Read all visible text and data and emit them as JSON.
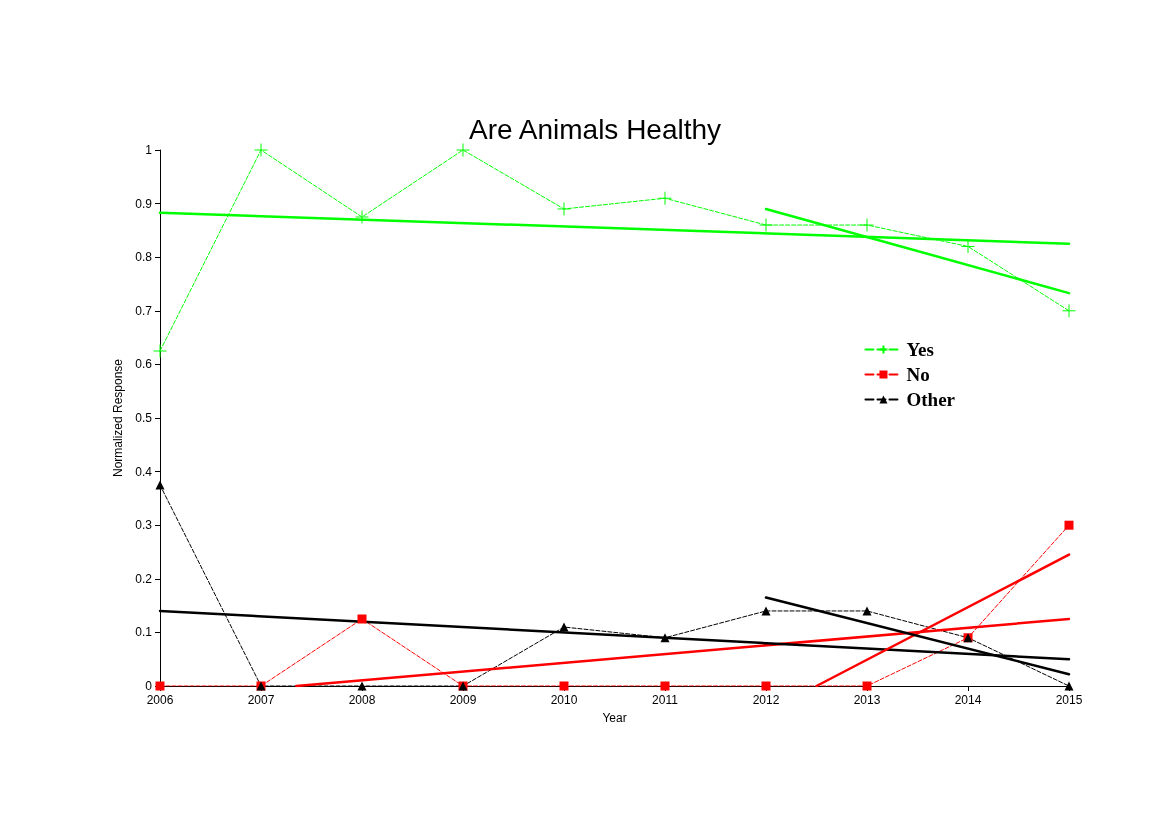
{
  "chart_data": {
    "type": "line",
    "title": "Are Animals Healthy",
    "xlabel": "Year",
    "ylabel": "Normalized Response",
    "x": [
      2006,
      2007,
      2008,
      2009,
      2010,
      2011,
      2012,
      2013,
      2014,
      2015
    ],
    "xlim": [
      2006,
      2015
    ],
    "xticks": [
      2006,
      2007,
      2008,
      2009,
      2010,
      2011,
      2012,
      2013,
      2014,
      2015
    ],
    "ylim": [
      0,
      1
    ],
    "yticks": [
      0,
      0.1,
      0.2,
      0.3,
      0.4,
      0.5,
      0.6,
      0.7,
      0.8,
      0.9,
      1
    ],
    "grid": false,
    "legend": "right",
    "series": [
      {
        "name": "Yes",
        "color": "#00ff00",
        "marker": "cross",
        "line_style": "dashed",
        "values": [
          0.625,
          1,
          0.875,
          1,
          0.89,
          0.91,
          0.86,
          0.86,
          0.82,
          0.7
        ]
      },
      {
        "name": "No",
        "color": "#ff0000",
        "marker": "square",
        "line_style": "dashed",
        "values": [
          0,
          0,
          0.125,
          0,
          0,
          0,
          0,
          0,
          0.09,
          0.3
        ]
      },
      {
        "name": "Other",
        "color": "#000000",
        "marker": "triangle",
        "line_style": "dashed",
        "values": [
          0.375,
          0,
          0,
          0,
          0.11,
          0.09,
          0.14,
          0.14,
          0.09,
          0
        ]
      },
      {
        "color": "#00ff00",
        "marker": "none",
        "line_style": "solid",
        "x": [
          2006,
          2015
        ],
        "values": [
          0.883,
          0.825
        ]
      },
      {
        "color": "#ff0000",
        "marker": "none",
        "line_style": "solid",
        "x": [
          2007.35,
          2015
        ],
        "values": [
          0,
          0.125
        ]
      },
      {
        "color": "#000000",
        "marker": "none",
        "line_style": "solid",
        "x": [
          2006,
          2015
        ],
        "values": [
          0.14,
          0.05
        ]
      },
      {
        "color": "#00ff00",
        "marker": "none",
        "line_style": "solid",
        "x": [
          2012,
          2015
        ],
        "values": [
          0.89,
          0.733
        ]
      },
      {
        "color": "#ff0000",
        "marker": "none",
        "line_style": "solid",
        "x": [
          2012.5,
          2015
        ],
        "values": [
          0,
          0.245
        ]
      },
      {
        "color": "#000000",
        "marker": "none",
        "line_style": "solid",
        "x": [
          2012,
          2015
        ],
        "values": [
          0.165,
          0.022
        ]
      }
    ]
  }
}
